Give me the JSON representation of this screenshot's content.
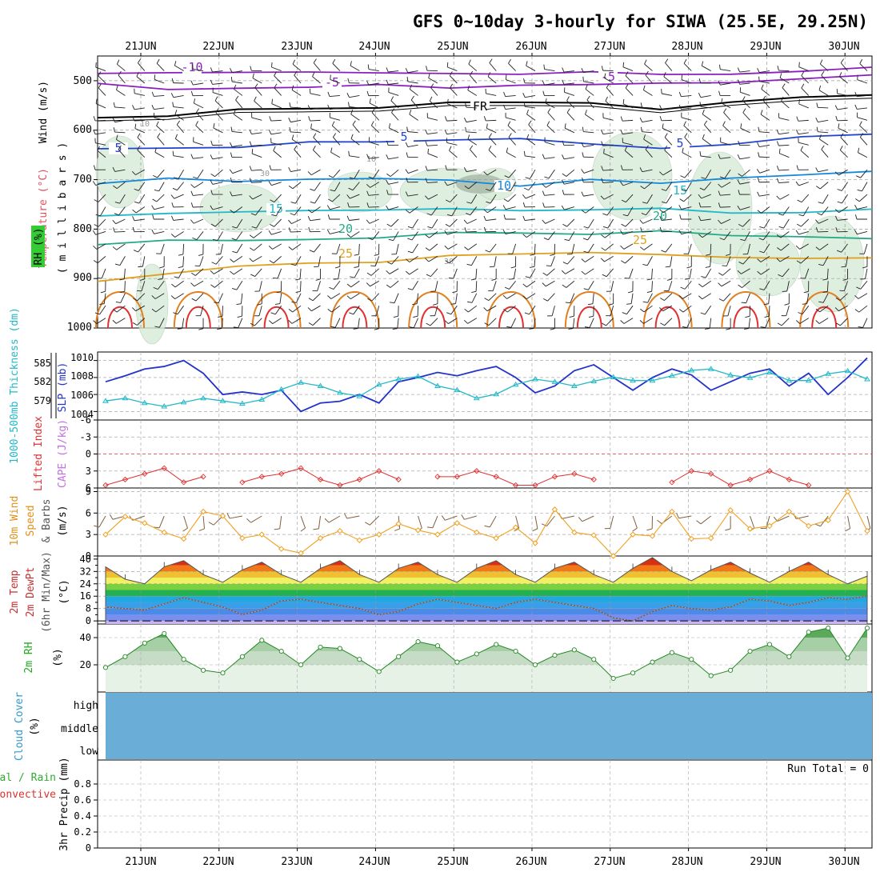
{
  "title": "GFS 0~10day 3-hourly for SIWA (25.5E, 29.25N)",
  "x_axis": {
    "start_day": "20JUN",
    "end_day": "30JUN",
    "ticks": [
      "21JUN",
      "22JUN",
      "23JUN",
      "24JUN",
      "25JUN",
      "26JUN",
      "27JUN",
      "28JUN",
      "29JUN",
      "30JUN"
    ]
  },
  "panels": {
    "upper_air": {
      "ylabel_wind": "Wind (m/s)",
      "ylabel_temp": "Temperature (°C)",
      "ylabel_rh": "RH (%)",
      "ylabel_pressure": "( m i l l i b a r s )",
      "yticks": [
        "500",
        "600",
        "700",
        "800",
        "900",
        "1000"
      ],
      "rh_contour_labels": [
        "10",
        "30",
        "30",
        "10"
      ],
      "freezing_label": "FR"
    },
    "thickness_slp": {
      "ylabel_thickness": "1000-500mb Thickness (dm)",
      "ylabel_slp": "SLP (mb)",
      "yticks_left": [
        "585",
        "582",
        "579"
      ],
      "yticks_right": [
        "1010",
        "1008",
        "1006",
        "1004"
      ]
    },
    "lifted_cape": {
      "ylabel_li": "Lifted Index",
      "ylabel_cape": "CAPE (J/kg)",
      "yticks": [
        "-6",
        "-3",
        "0",
        "3",
        "6"
      ]
    },
    "wind10m": {
      "ylabel_1": "10m Wind",
      "ylabel_2": "Speed",
      "ylabel_3": "& Barbs",
      "ylabel_units": "(m/s)",
      "yticks": [
        "9",
        "6",
        "3",
        "0"
      ]
    },
    "temp2m": {
      "ylabel_1": "2m Temp",
      "ylabel_2": "2m DewPt",
      "ylabel_3": "(6hr Min/Max)",
      "ylabel_units": "(°C)",
      "yticks": [
        "40",
        "32",
        "24",
        "16",
        "8",
        "0"
      ],
      "yticks_minor": [
        "36",
        "28",
        "20",
        "12",
        "4"
      ]
    },
    "rh2m": {
      "ylabel": "2m RH",
      "ylabel_units": "(%)",
      "yticks": [
        "40",
        "20"
      ]
    },
    "cloud": {
      "ylabel": "Cloud Cover",
      "ylabel_units": "(%)",
      "levels": [
        "high",
        "middle",
        "low"
      ]
    },
    "precip": {
      "ylabel_left1": "tal / Rain",
      "ylabel_left2": "Convective",
      "ylabel": "3hr Precip (mm)",
      "yticks": [
        "0.8",
        "0.6",
        "0.4",
        "0.2",
        "0"
      ],
      "run_total": "Run Total = 0"
    }
  },
  "colors": {
    "slp": "#2233cc",
    "thickness": "#22b8c8",
    "lifted_index": "#e03030",
    "wind_speed": "#f0a020",
    "barbs": "#806040",
    "rh_green": "#33aa33",
    "cloud": "#6aaed8"
  },
  "chart_data": [
    {
      "type": "line",
      "panel": "upper_air_temperature_contours",
      "ylabel": "millibars",
      "ylim": [
        1000,
        450
      ],
      "x": [
        "20JUN12",
        "21JUN",
        "22JUN",
        "23JUN",
        "24JUN",
        "25JUN",
        "26JUN",
        "27JUN",
        "28JUN",
        "29JUN",
        "30JUN",
        "30JUN06"
      ],
      "series": [
        {
          "name": "-10",
          "color": "#8a1ec0",
          "values": [
            488,
            485,
            482,
            483,
            484,
            485,
            485,
            485,
            485,
            484,
            480,
            475
          ]
        },
        {
          "name": "-5",
          "color": "#8a1ec0",
          "values": [
            508,
            515,
            512,
            510,
            510,
            512,
            512,
            506,
            508,
            504,
            495,
            485
          ]
        },
        {
          "name": "FR",
          "color": "#000000",
          "values": [
            575,
            570,
            560,
            555,
            552,
            545,
            545,
            548,
            555,
            540,
            533,
            532
          ]
        },
        {
          "name": "5",
          "color": "#2244cc",
          "values": [
            640,
            638,
            632,
            625,
            625,
            620,
            618,
            628,
            640,
            630,
            612,
            605
          ]
        },
        {
          "name": "10",
          "color": "#1188dd",
          "values": [
            705,
            700,
            705,
            702,
            700,
            702,
            710,
            700,
            705,
            700,
            690,
            680
          ]
        },
        {
          "name": "15",
          "color": "#22b8c8",
          "values": [
            773,
            770,
            765,
            765,
            760,
            758,
            760,
            758,
            760,
            768,
            765,
            760
          ]
        },
        {
          "name": "20",
          "color": "#22aa88",
          "values": [
            833,
            825,
            820,
            818,
            815,
            810,
            805,
            808,
            800,
            810,
            818,
            820
          ]
        },
        {
          "name": "25",
          "color": "#e0a020",
          "values": [
            905,
            890,
            875,
            870,
            865,
            855,
            850,
            850,
            852,
            855,
            860,
            860
          ]
        }
      ],
      "contour_labels": [
        "-10",
        "-5",
        "-5",
        "FR",
        "5",
        "5",
        "5",
        "10",
        "10",
        "15",
        "15",
        "20",
        "20",
        "25",
        "25"
      ]
    },
    {
      "type": "line",
      "panel": "thickness_and_slp",
      "x": [
        "20JUN12",
        "20JUN18",
        "21JUN",
        "21JUN06",
        "21JUN12",
        "21JUN18",
        "22JUN",
        "22JUN06",
        "22JUN12",
        "22JUN18",
        "23JUN",
        "23JUN06",
        "23JUN12",
        "23JUN18",
        "24JUN",
        "24JUN06",
        "24JUN12",
        "24JUN18",
        "25JUN",
        "25JUN06",
        "25JUN12",
        "25JUN18",
        "26JUN",
        "26JUN06",
        "26JUN12",
        "26JUN18",
        "27JUN",
        "27JUN06",
        "27JUN12",
        "27JUN18",
        "28JUN",
        "28JUN06",
        "28JUN12",
        "28JUN18",
        "29JUN",
        "29JUN06",
        "29JUN12",
        "29JUN18",
        "30JUN",
        "30JUN06"
      ],
      "series": [
        {
          "name": "SLP (mb)",
          "axis": "right",
          "ylim": [
            1003,
            1011
          ],
          "values": [
            1007.5,
            1008.2,
            1009.0,
            1009.3,
            1010.0,
            1008.5,
            1006.0,
            1006.3,
            1006.0,
            1006.5,
            1004.0,
            1005.0,
            1005.2,
            1006.0,
            1005.0,
            1007.5,
            1008.0,
            1008.6,
            1008.2,
            1008.8,
            1009.3,
            1008.0,
            1006.2,
            1007.0,
            1008.8,
            1009.5,
            1008.0,
            1006.5,
            1008.0,
            1009.0,
            1008.3,
            1006.5,
            1007.5,
            1008.5,
            1009.0,
            1007.0,
            1008.5,
            1006.0,
            1008.0,
            1010.3
          ]
        },
        {
          "name": "1000-500mb Thickness (dm)",
          "axis": "left",
          "ylim": [
            577,
            587
          ],
          "values": [
            579.8,
            580.2,
            579.5,
            579.0,
            579.6,
            580.2,
            579.8,
            579.4,
            580.0,
            581.5,
            582.5,
            582.0,
            581.0,
            580.5,
            582.2,
            583.0,
            583.4,
            582.0,
            581.4,
            580.2,
            580.8,
            582.2,
            583.0,
            582.6,
            582.0,
            582.7,
            583.3,
            582.8,
            582.8,
            583.5,
            584.3,
            584.5,
            583.6,
            583.2,
            584.0,
            582.8,
            582.8,
            583.8,
            584.2,
            583.0
          ]
        }
      ],
      "yticks_left": [
        579,
        582,
        585
      ],
      "yticks_right": [
        1004,
        1006,
        1008,
        1010
      ]
    },
    {
      "type": "line",
      "panel": "lifted_index_cape",
      "ylim": [
        6,
        -6
      ],
      "x": [
        "20JUN12",
        "20JUN18",
        "21JUN",
        "21JUN06",
        "21JUN12",
        "21JUN18",
        "22JUN",
        "22JUN06",
        "22JUN12",
        "22JUN18",
        "23JUN",
        "23JUN06",
        "23JUN12",
        "23JUN18",
        "24JUN",
        "24JUN06",
        "24JUN12",
        "24JUN18",
        "25JUN",
        "25JUN06",
        "25JUN12",
        "25JUN18",
        "26JUN",
        "26JUN06",
        "26JUN12",
        "26JUN18",
        "27JUN",
        "27JUN06",
        "27JUN12",
        "27JUN18",
        "28JUN",
        "28JUN06",
        "28JUN12",
        "28JUN18",
        "29JUN",
        "29JUN06",
        "29JUN12",
        "29JUN18",
        "30JUN",
        "30JUN06"
      ],
      "series": [
        {
          "name": "Lifted Index",
          "values": [
            5.5,
            4.5,
            3.5,
            2.5,
            5.0,
            4.0,
            null,
            5.0,
            4.0,
            3.5,
            2.5,
            4.5,
            5.5,
            4.5,
            3.0,
            4.5,
            null,
            4.0,
            4.0,
            3.0,
            4.0,
            5.5,
            5.5,
            4.0,
            3.5,
            4.5,
            null,
            null,
            null,
            5.0,
            3.0,
            3.5,
            5.5,
            4.5,
            3.0,
            4.5,
            5.5,
            null,
            null,
            null
          ]
        },
        {
          "name": "CAPE (J/kg)",
          "values": [
            0,
            0,
            0,
            0,
            0,
            0,
            0,
            0,
            0,
            0,
            0,
            0,
            0,
            0,
            0,
            0,
            0,
            0,
            0,
            0,
            0,
            0,
            0,
            0,
            0,
            0,
            0,
            0,
            0,
            0,
            0,
            0,
            0,
            0,
            0,
            0,
            0,
            0,
            0,
            0
          ]
        }
      ]
    },
    {
      "type": "line",
      "panel": "wind_10m",
      "ylim": [
        0,
        9.5
      ],
      "x": [
        "20JUN12",
        "20JUN18",
        "21JUN",
        "21JUN06",
        "21JUN12",
        "21JUN18",
        "22JUN",
        "22JUN06",
        "22JUN12",
        "22JUN18",
        "23JUN",
        "23JUN06",
        "23JUN12",
        "23JUN18",
        "24JUN",
        "24JUN06",
        "24JUN12",
        "24JUN18",
        "25JUN",
        "25JUN06",
        "25JUN12",
        "25JUN18",
        "26JUN",
        "26JUN06",
        "26JUN12",
        "26JUN18",
        "27JUN",
        "27JUN06",
        "27JUN12",
        "27JUN18",
        "28JUN",
        "28JUN06",
        "28JUN12",
        "28JUN18",
        "29JUN",
        "29JUN06",
        "29JUN12",
        "29JUN18",
        "30JUN",
        "30JUN06"
      ],
      "series": [
        {
          "name": "Speed (m/s)",
          "values": [
            3.0,
            5.5,
            4.6,
            3.3,
            2.4,
            6.2,
            5.6,
            2.5,
            3.0,
            1.0,
            0.4,
            2.5,
            3.5,
            2.2,
            3.0,
            4.5,
            3.6,
            3.0,
            4.6,
            3.3,
            2.5,
            4.0,
            1.8,
            6.5,
            3.3,
            2.9,
            0.0,
            3.0,
            2.8,
            6.2,
            2.4,
            2.5,
            6.4,
            3.8,
            4.2,
            6.2,
            4.2,
            5.0,
            9.0,
            3.5
          ]
        }
      ]
    },
    {
      "type": "area",
      "panel": "temp_2m",
      "ylim": [
        -2,
        42
      ],
      "x": [
        "20JUN12",
        "20JUN18",
        "21JUN",
        "21JUN06",
        "21JUN12",
        "21JUN18",
        "22JUN",
        "22JUN06",
        "22JUN12",
        "22JUN18",
        "23JUN",
        "23JUN06",
        "23JUN12",
        "23JUN18",
        "24JUN",
        "24JUN06",
        "24JUN12",
        "24JUN18",
        "25JUN",
        "25JUN06",
        "25JUN12",
        "25JUN18",
        "26JUN",
        "26JUN06",
        "26JUN12",
        "26JUN18",
        "27JUN",
        "27JUN06",
        "27JUN12",
        "27JUN18",
        "28JUN",
        "28JUN06",
        "28JUN12",
        "28JUN18",
        "29JUN",
        "29JUN06",
        "29JUN12",
        "29JUN18",
        "30JUN",
        "30JUN06"
      ],
      "series": [
        {
          "name": "2m Temp",
          "values": [
            35,
            27,
            24,
            35,
            39,
            30,
            25,
            33,
            38,
            30,
            25,
            34,
            39,
            30,
            25,
            34,
            38,
            30,
            25,
            34,
            39,
            30,
            25,
            34,
            38,
            30,
            25,
            34,
            41,
            32,
            26,
            33,
            38,
            31,
            25,
            32,
            38,
            30,
            24,
            29
          ]
        },
        {
          "name": "2m DewPt",
          "values": [
            9,
            8,
            7,
            11,
            15,
            12,
            9,
            4,
            7,
            13,
            14,
            12,
            10,
            8,
            4,
            6,
            11,
            14,
            12,
            10,
            8,
            12,
            14,
            12,
            10,
            8,
            2,
            0,
            6,
            10,
            8,
            7,
            9,
            14,
            13,
            10,
            12,
            15,
            14,
            16
          ]
        }
      ]
    },
    {
      "type": "area",
      "panel": "rh_2m",
      "ylim": [
        0,
        50
      ],
      "x": [
        "20JUN12",
        "20JUN18",
        "21JUN",
        "21JUN06",
        "21JUN12",
        "21JUN18",
        "22JUN",
        "22JUN06",
        "22JUN12",
        "22JUN18",
        "23JUN",
        "23JUN06",
        "23JUN12",
        "23JUN18",
        "24JUN",
        "24JUN06",
        "24JUN12",
        "24JUN18",
        "25JUN",
        "25JUN06",
        "25JUN12",
        "25JUN18",
        "26JUN",
        "26JUN06",
        "26JUN12",
        "26JUN18",
        "27JUN",
        "27JUN06",
        "27JUN12",
        "27JUN18",
        "28JUN",
        "28JUN06",
        "28JUN12",
        "28JUN18",
        "29JUN",
        "29JUN06",
        "29JUN12",
        "29JUN18",
        "30JUN",
        "30JUN06"
      ],
      "series": [
        {
          "name": "2m RH (%)",
          "values": [
            18,
            26,
            36,
            43,
            24,
            16,
            14,
            26,
            38,
            30,
            20,
            33,
            32,
            24,
            15,
            26,
            37,
            34,
            22,
            28,
            35,
            30,
            20,
            27,
            31,
            24,
            10,
            14,
            22,
            29,
            24,
            12,
            16,
            30,
            35,
            26,
            44,
            47,
            25,
            47
          ]
        }
      ]
    },
    {
      "type": "bar",
      "panel": "cloud_cover",
      "categories": [
        "high",
        "middle",
        "low"
      ],
      "values": [
        0,
        0,
        0
      ]
    },
    {
      "type": "bar",
      "panel": "precip_3hr",
      "ylabel": "3hr Precip (mm)",
      "ylim": [
        0,
        1
      ],
      "values": [
        0,
        0,
        0,
        0,
        0,
        0,
        0,
        0,
        0,
        0,
        0,
        0,
        0,
        0,
        0,
        0,
        0,
        0,
        0,
        0,
        0,
        0,
        0,
        0,
        0,
        0,
        0,
        0,
        0,
        0,
        0,
        0,
        0,
        0,
        0,
        0,
        0,
        0,
        0,
        0
      ]
    }
  ]
}
